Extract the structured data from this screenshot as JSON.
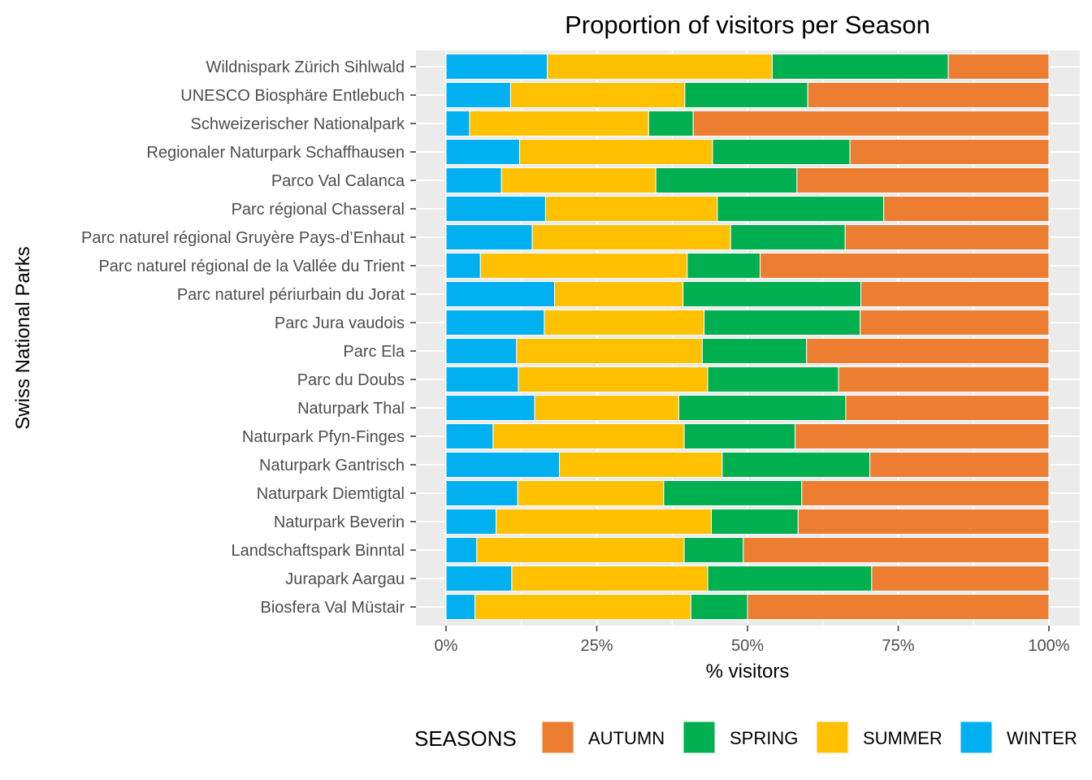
{
  "chart_data": {
    "type": "bar",
    "orientation": "horizontal",
    "stacked": "proportional",
    "title": "Proportion of visitors per Season",
    "xlabel": "% visitors",
    "ylabel": "Swiss National Parks",
    "xlim": [
      0,
      1
    ],
    "x_ticks": [
      "0%",
      "25%",
      "50%",
      "75%",
      "100%"
    ],
    "grid": true,
    "legend": {
      "title": "SEASONS",
      "position": "bottom",
      "entries": [
        "AUTUMN",
        "SPRING",
        "SUMMER",
        "WINTER"
      ]
    },
    "stack_order": [
      "WINTER",
      "SUMMER",
      "SPRING",
      "AUTUMN"
    ],
    "colors": {
      "WINTER": "#00B0F0",
      "SUMMER": "#FFC000",
      "SPRING": "#00B050",
      "AUTUMN": "#ED7D31"
    },
    "categories": [
      "Wildnispark Zürich Sihlwald",
      "UNESCO Biosphäre Entlebuch",
      "Schweizerischer Nationalpark",
      "Regionaler Naturpark Schaffhausen",
      "Parco Val Calanca",
      "Parc régional Chasseral",
      "Parc naturel régional Gruyère Pays-d’Enhaut",
      "Parc naturel régional de la Vallée du Trient",
      "Parc naturel périurbain du Jorat",
      "Parc Jura vaudois",
      "Parc Ela",
      "Parc du Doubs",
      "Naturpark Thal",
      "Naturpark Pfyn-Finges",
      "Naturpark Gantrisch",
      "Naturpark Diemtigtal",
      "Naturpark Beverin",
      "Landschaftspark Binntal",
      "Jurapark Aargau",
      "Biosfera Val Müstair"
    ],
    "series": [
      {
        "name": "WINTER",
        "values": [
          0.168,
          0.107,
          0.039,
          0.122,
          0.092,
          0.165,
          0.143,
          0.057,
          0.18,
          0.163,
          0.117,
          0.12,
          0.147,
          0.078,
          0.188,
          0.119,
          0.083,
          0.051,
          0.109,
          0.048
        ]
      },
      {
        "name": "SUMMER",
        "values": [
          0.373,
          0.289,
          0.297,
          0.32,
          0.256,
          0.285,
          0.329,
          0.343,
          0.213,
          0.265,
          0.308,
          0.314,
          0.239,
          0.317,
          0.27,
          0.242,
          0.357,
          0.344,
          0.325,
          0.358
        ]
      },
      {
        "name": "SPRING",
        "values": [
          0.292,
          0.204,
          0.074,
          0.228,
          0.234,
          0.276,
          0.19,
          0.121,
          0.295,
          0.259,
          0.173,
          0.217,
          0.277,
          0.184,
          0.245,
          0.229,
          0.144,
          0.098,
          0.272,
          0.094
        ]
      },
      {
        "name": "AUTUMN",
        "values": [
          0.167,
          0.4,
          0.59,
          0.33,
          0.418,
          0.274,
          0.338,
          0.479,
          0.312,
          0.313,
          0.402,
          0.349,
          0.337,
          0.421,
          0.297,
          0.41,
          0.416,
          0.507,
          0.294,
          0.5
        ]
      }
    ]
  }
}
